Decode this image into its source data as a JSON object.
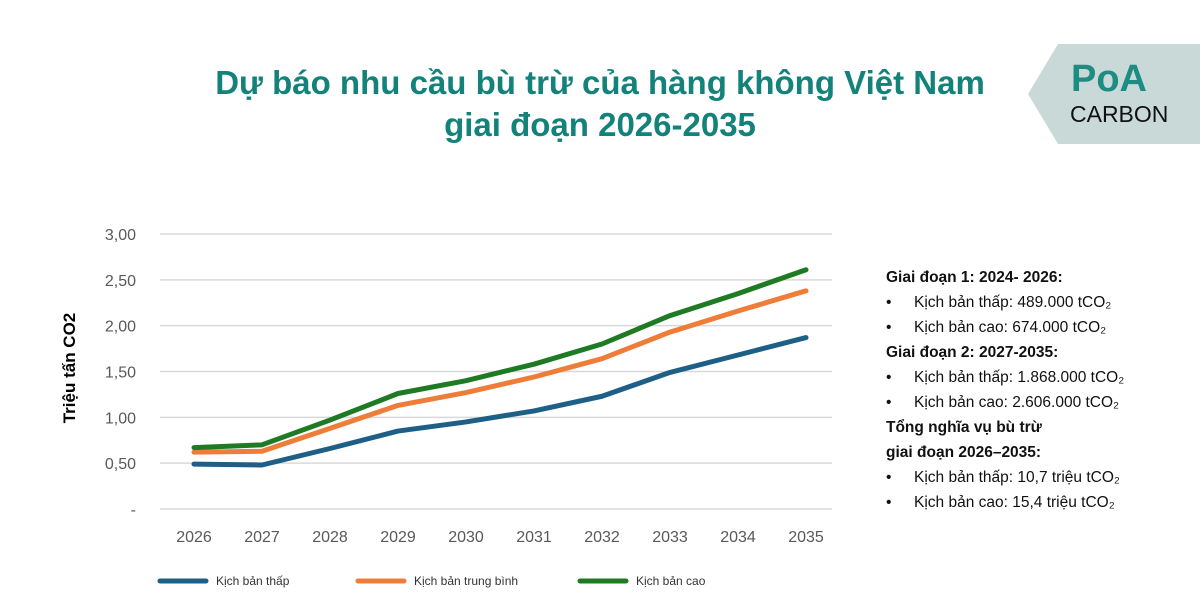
{
  "title_line1": "Dự báo nhu cầu bù trừ của hàng không Việt Nam",
  "title_line2": "giai đoạn 2026-2035",
  "logo": {
    "line1": "PoA",
    "line2": "CARBON",
    "bg": "#c9d9d8"
  },
  "chart_data": {
    "type": "line",
    "title": "",
    "xlabel": "",
    "ylabel": "Triệu tấn CO2",
    "categories": [
      "2026",
      "2027",
      "2028",
      "2029",
      "2030",
      "2031",
      "2032",
      "2033",
      "2034",
      "2035"
    ],
    "ylim": [
      0,
      3
    ],
    "yticks": [
      "-",
      "0,50",
      "1,00",
      "1,50",
      "2,00",
      "2,50",
      "3,00"
    ],
    "grid": true,
    "legend_placement": "bottom",
    "series": [
      {
        "name": "Kịch bản thấp",
        "color": "#1d5f87",
        "values": [
          0.49,
          0.48,
          0.66,
          0.85,
          0.95,
          1.07,
          1.23,
          1.49,
          1.68,
          1.87
        ]
      },
      {
        "name": "Kịch bản trung bình",
        "color": "#ef7d3a",
        "values": [
          0.62,
          0.63,
          0.88,
          1.13,
          1.27,
          1.44,
          1.64,
          1.93,
          2.16,
          2.38
        ]
      },
      {
        "name": "Kịch bản cao",
        "color": "#1f7a24",
        "values": [
          0.67,
          0.7,
          0.97,
          1.26,
          1.4,
          1.58,
          1.8,
          2.11,
          2.35,
          2.61
        ]
      }
    ]
  },
  "info": [
    {
      "type": "h",
      "text": "Giai đoạn 1: 2024- 2026:"
    },
    {
      "type": "b",
      "text": "Kịch bản thấp: 489.000 tCO₂"
    },
    {
      "type": "b",
      "text": "Kịch bản cao: 674.000 tCO₂"
    },
    {
      "type": "h",
      "text": "Giai đoạn 2: 2027-2035:"
    },
    {
      "type": "b",
      "text": "Kịch bản thấp: 1.868.000 tCO₂"
    },
    {
      "type": "b",
      "text": "Kịch bản cao: 2.606.000 tCO₂"
    },
    {
      "type": "h",
      "text": "Tổng nghĩa vụ bù trừ"
    },
    {
      "type": "h",
      "text": "giai đoạn 2026–2035:"
    },
    {
      "type": "b",
      "text": "Kịch bản thấp: 10,7 triệu tCO₂"
    },
    {
      "type": "b",
      "text": "Kịch bản cao: 15,4 triệu tCO₂"
    }
  ],
  "bullet": "•"
}
